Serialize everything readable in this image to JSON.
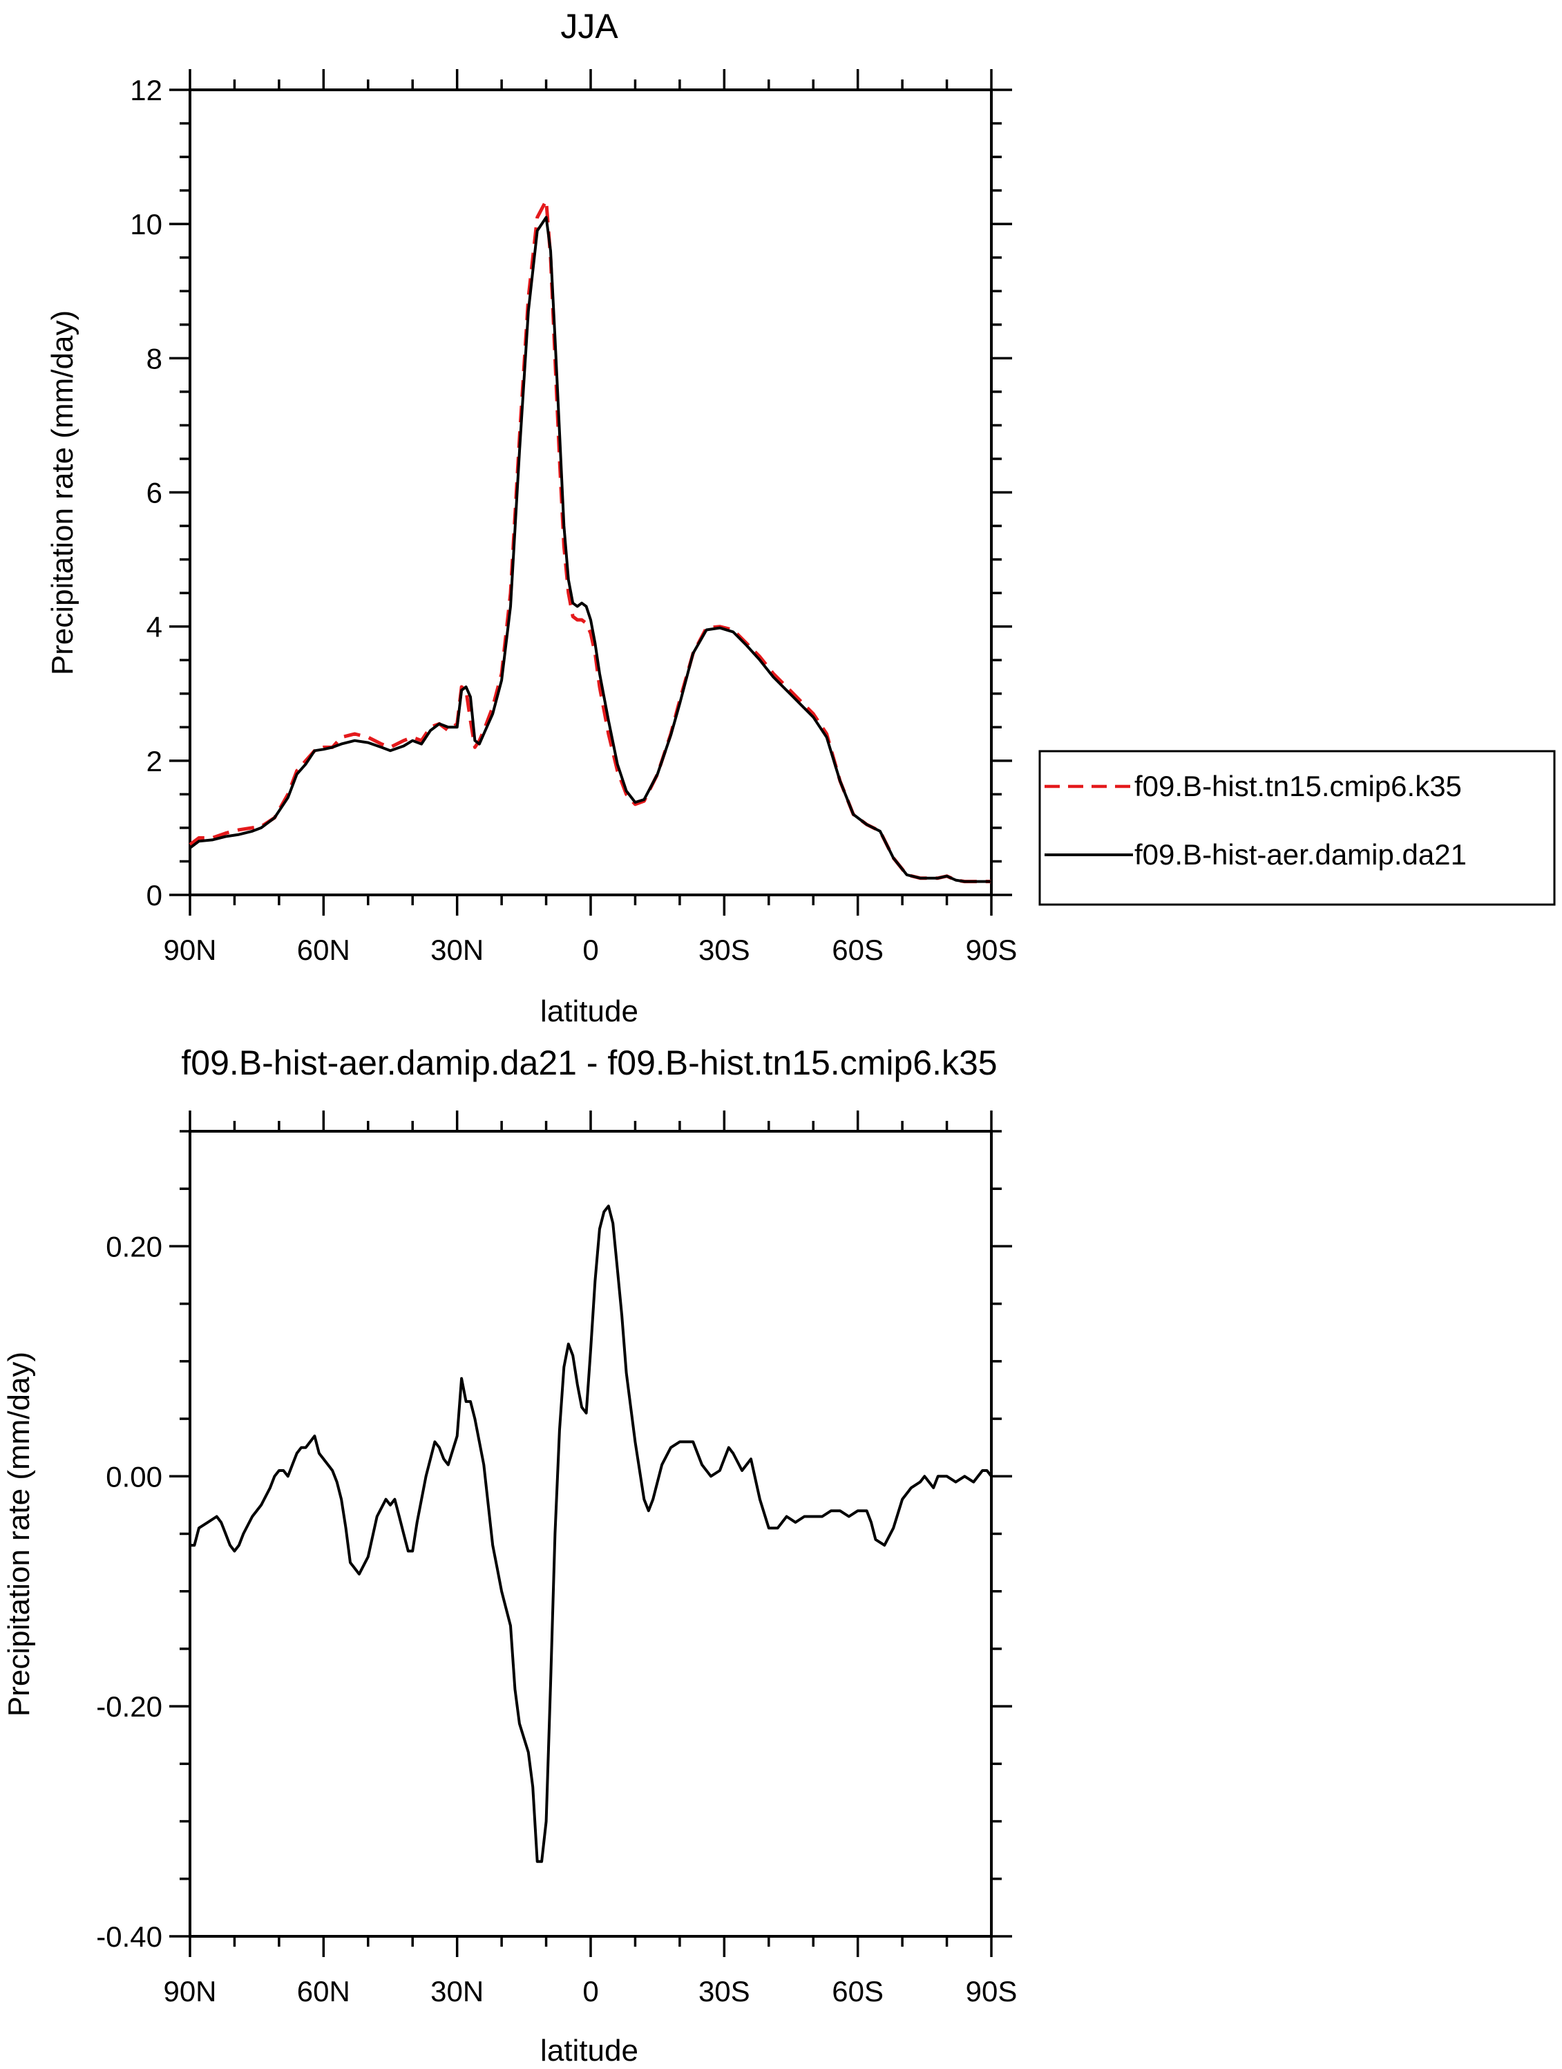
{
  "chart_data": [
    {
      "type": "line",
      "title": "JJA",
      "xlabel": "latitude",
      "ylabel": "Precipitation rate (mm/day)",
      "xlim": [
        90,
        -90
      ],
      "ylim": [
        0,
        12
      ],
      "yticks": [
        0,
        2,
        4,
        6,
        8,
        10,
        12
      ],
      "ytick_labels": [
        "0",
        "2",
        "4",
        "6",
        "8",
        "10",
        "12"
      ],
      "xticks": [
        90,
        60,
        30,
        0,
        -30,
        -60,
        -90
      ],
      "xtick_labels": [
        "90N",
        "60N",
        "30N",
        "0",
        "30S",
        "60S",
        "90S"
      ],
      "legend_position": "right",
      "grid": false,
      "series": [
        {
          "name": "f09.B-hist.tn15.cmip6.k35",
          "color": "#e41a1c",
          "style": "dashed",
          "x": [
            90,
            88,
            85,
            82,
            79,
            76,
            74,
            71,
            68,
            66,
            64,
            62,
            60,
            58,
            56,
            53,
            50,
            47,
            45,
            42,
            40,
            38,
            36,
            34,
            32,
            30,
            29,
            28,
            27,
            26,
            25,
            24,
            22,
            20,
            18,
            16,
            14,
            12,
            10,
            9,
            8,
            7,
            6,
            5,
            4,
            3,
            2,
            1,
            0,
            -1,
            -2,
            -4,
            -6,
            -8,
            -10,
            -12,
            -15,
            -18,
            -20,
            -23,
            -26,
            -29,
            -32,
            -35,
            -38,
            -41,
            -44,
            -47,
            -50,
            -53,
            -56,
            -59,
            -62,
            -65,
            -68,
            -71,
            -74,
            -76,
            -78,
            -80,
            -82,
            -84,
            -86,
            -88,
            -90
          ],
          "values": [
            0.75,
            0.85,
            0.85,
            0.92,
            0.97,
            1.0,
            1.02,
            1.15,
            1.5,
            1.85,
            2.0,
            2.15,
            2.2,
            2.2,
            2.35,
            2.4,
            2.35,
            2.25,
            2.2,
            2.3,
            2.35,
            2.3,
            2.5,
            2.55,
            2.45,
            2.55,
            3.1,
            3.05,
            2.6,
            2.2,
            2.3,
            2.45,
            2.8,
            3.3,
            4.5,
            6.8,
            8.9,
            10.1,
            10.35,
            9.5,
            8.0,
            6.5,
            5.2,
            4.5,
            4.15,
            4.1,
            4.1,
            4.05,
            3.9,
            3.6,
            3.1,
            2.4,
            1.85,
            1.5,
            1.35,
            1.4,
            1.8,
            2.4,
            2.9,
            3.6,
            3.98,
            4.0,
            3.95,
            3.75,
            3.55,
            3.3,
            3.1,
            2.9,
            2.7,
            2.4,
            1.7,
            1.2,
            1.05,
            0.95,
            0.55,
            0.3,
            0.25,
            0.25,
            0.25,
            0.28,
            0.22,
            0.2,
            0.2,
            0.2,
            0.2
          ]
        },
        {
          "name": "f09.B-hist-aer.damip.da21",
          "color": "#000000",
          "style": "solid",
          "x": [
            90,
            88,
            85,
            82,
            79,
            76,
            74,
            71,
            68,
            66,
            64,
            62,
            60,
            58,
            56,
            53,
            50,
            47,
            45,
            42,
            40,
            38,
            36,
            34,
            32,
            30,
            29,
            28,
            27,
            26,
            25,
            24,
            22,
            20,
            18,
            16,
            14,
            12,
            10,
            9,
            8,
            7,
            6,
            5,
            4,
            3,
            2,
            1,
            0,
            -1,
            -2,
            -4,
            -6,
            -8,
            -10,
            -12,
            -15,
            -18,
            -20,
            -23,
            -26,
            -29,
            -32,
            -35,
            -38,
            -41,
            -44,
            -47,
            -50,
            -53,
            -56,
            -59,
            -62,
            -65,
            -68,
            -71,
            -74,
            -76,
            -78,
            -80,
            -82,
            -84,
            -86,
            -88,
            -90
          ],
          "values": [
            0.7,
            0.8,
            0.82,
            0.87,
            0.9,
            0.95,
            1.0,
            1.15,
            1.45,
            1.8,
            1.95,
            2.15,
            2.17,
            2.2,
            2.25,
            2.3,
            2.27,
            2.2,
            2.15,
            2.22,
            2.3,
            2.25,
            2.45,
            2.55,
            2.5,
            2.5,
            3.05,
            3.1,
            2.95,
            2.3,
            2.25,
            2.4,
            2.7,
            3.2,
            4.3,
            6.6,
            8.7,
            9.9,
            10.1,
            9.6,
            8.3,
            6.9,
            5.5,
            4.7,
            4.35,
            4.3,
            4.35,
            4.3,
            4.1,
            3.75,
            3.3,
            2.6,
            1.95,
            1.55,
            1.38,
            1.42,
            1.8,
            2.38,
            2.85,
            3.6,
            3.95,
            3.98,
            3.92,
            3.72,
            3.5,
            3.25,
            3.05,
            2.85,
            2.65,
            2.35,
            1.7,
            1.2,
            1.05,
            0.95,
            0.55,
            0.3,
            0.25,
            0.25,
            0.25,
            0.28,
            0.22,
            0.2,
            0.2,
            0.2,
            0.2
          ]
        }
      ]
    },
    {
      "type": "line",
      "title": "f09.B-hist-aer.damip.da21 - f09.B-hist.tn15.cmip6.k35",
      "xlabel": "latitude",
      "ylabel": "Precipitation rate (mm/day)",
      "xlim": [
        90,
        -90
      ],
      "ylim": [
        -0.4,
        0.3
      ],
      "yticks": [
        -0.4,
        -0.2,
        0.0,
        0.2
      ],
      "ytick_labels": [
        "-0.40",
        "-0.20",
        "0.00",
        "0.20"
      ],
      "xticks": [
        90,
        60,
        30,
        0,
        -30,
        -60,
        -90
      ],
      "xtick_labels": [
        "90N",
        "60N",
        "30N",
        "0",
        "30S",
        "60S",
        "90S"
      ],
      "grid": false,
      "series": [
        {
          "color": "#000000",
          "style": "solid",
          "x": [
            90,
            89,
            88,
            86,
            84,
            83,
            82,
            81,
            80,
            79,
            78,
            76,
            74,
            72,
            71,
            70,
            69,
            68,
            67,
            66,
            65,
            64,
            63,
            62,
            61,
            59,
            58,
            57,
            56,
            55,
            54,
            53,
            52,
            50,
            48,
            46,
            45,
            44,
            43,
            42,
            41,
            40,
            39,
            37,
            35,
            34,
            33,
            32,
            30,
            29,
            28,
            27,
            26,
            24,
            22,
            21,
            20,
            18,
            17,
            16,
            14,
            13,
            12,
            11,
            10,
            9,
            8,
            7,
            6,
            5,
            4,
            3,
            2,
            1,
            0,
            -1,
            -2,
            -3,
            -4,
            -5,
            -6,
            -7,
            -8,
            -10,
            -12,
            -13,
            -14,
            -16,
            -18,
            -20,
            -23,
            -25,
            -27,
            -29,
            -30,
            -31,
            -32,
            -34,
            -36,
            -38,
            -40,
            -42,
            -44,
            -46,
            -48,
            -50,
            -52,
            -54,
            -56,
            -58,
            -60,
            -61,
            -62,
            -63,
            -64,
            -66,
            -68,
            -70,
            -72,
            -74,
            -75,
            -76,
            -77,
            -78,
            -80,
            -82,
            -84,
            -86,
            -88,
            -89,
            -90
          ],
          "values": [
            -0.06,
            -0.06,
            -0.045,
            -0.04,
            -0.035,
            -0.04,
            -0.05,
            -0.06,
            -0.065,
            -0.06,
            -0.05,
            -0.035,
            -0.025,
            -0.01,
            0.0,
            0.005,
            0.005,
            0.0,
            0.01,
            0.02,
            0.025,
            0.025,
            0.03,
            0.035,
            0.02,
            0.01,
            0.005,
            -0.005,
            -0.02,
            -0.045,
            -0.075,
            -0.08,
            -0.085,
            -0.07,
            -0.035,
            -0.02,
            -0.025,
            -0.02,
            -0.035,
            -0.05,
            -0.065,
            -0.065,
            -0.04,
            0.0,
            0.03,
            0.025,
            0.015,
            0.01,
            0.035,
            0.085,
            0.065,
            0.065,
            0.05,
            0.01,
            -0.06,
            -0.08,
            -0.1,
            -0.13,
            -0.185,
            -0.215,
            -0.24,
            -0.27,
            -0.335,
            -0.335,
            -0.3,
            -0.18,
            -0.05,
            0.04,
            0.095,
            0.115,
            0.105,
            0.08,
            0.06,
            0.055,
            0.11,
            0.17,
            0.215,
            0.23,
            0.235,
            0.22,
            0.18,
            0.14,
            0.09,
            0.03,
            -0.02,
            -0.03,
            -0.02,
            0.01,
            0.025,
            0.03,
            0.03,
            0.01,
            0.0,
            0.005,
            0.015,
            0.025,
            0.02,
            0.005,
            0.015,
            -0.02,
            -0.045,
            -0.045,
            -0.035,
            -0.04,
            -0.035,
            -0.035,
            -0.035,
            -0.03,
            -0.03,
            -0.035,
            -0.03,
            -0.03,
            -0.03,
            -0.04,
            -0.055,
            -0.06,
            -0.045,
            -0.02,
            -0.01,
            -0.005,
            0.0,
            -0.005,
            -0.01,
            0.0,
            0.0,
            -0.005,
            0.0,
            -0.005,
            0.005,
            0.005,
            0.0
          ]
        }
      ]
    }
  ]
}
